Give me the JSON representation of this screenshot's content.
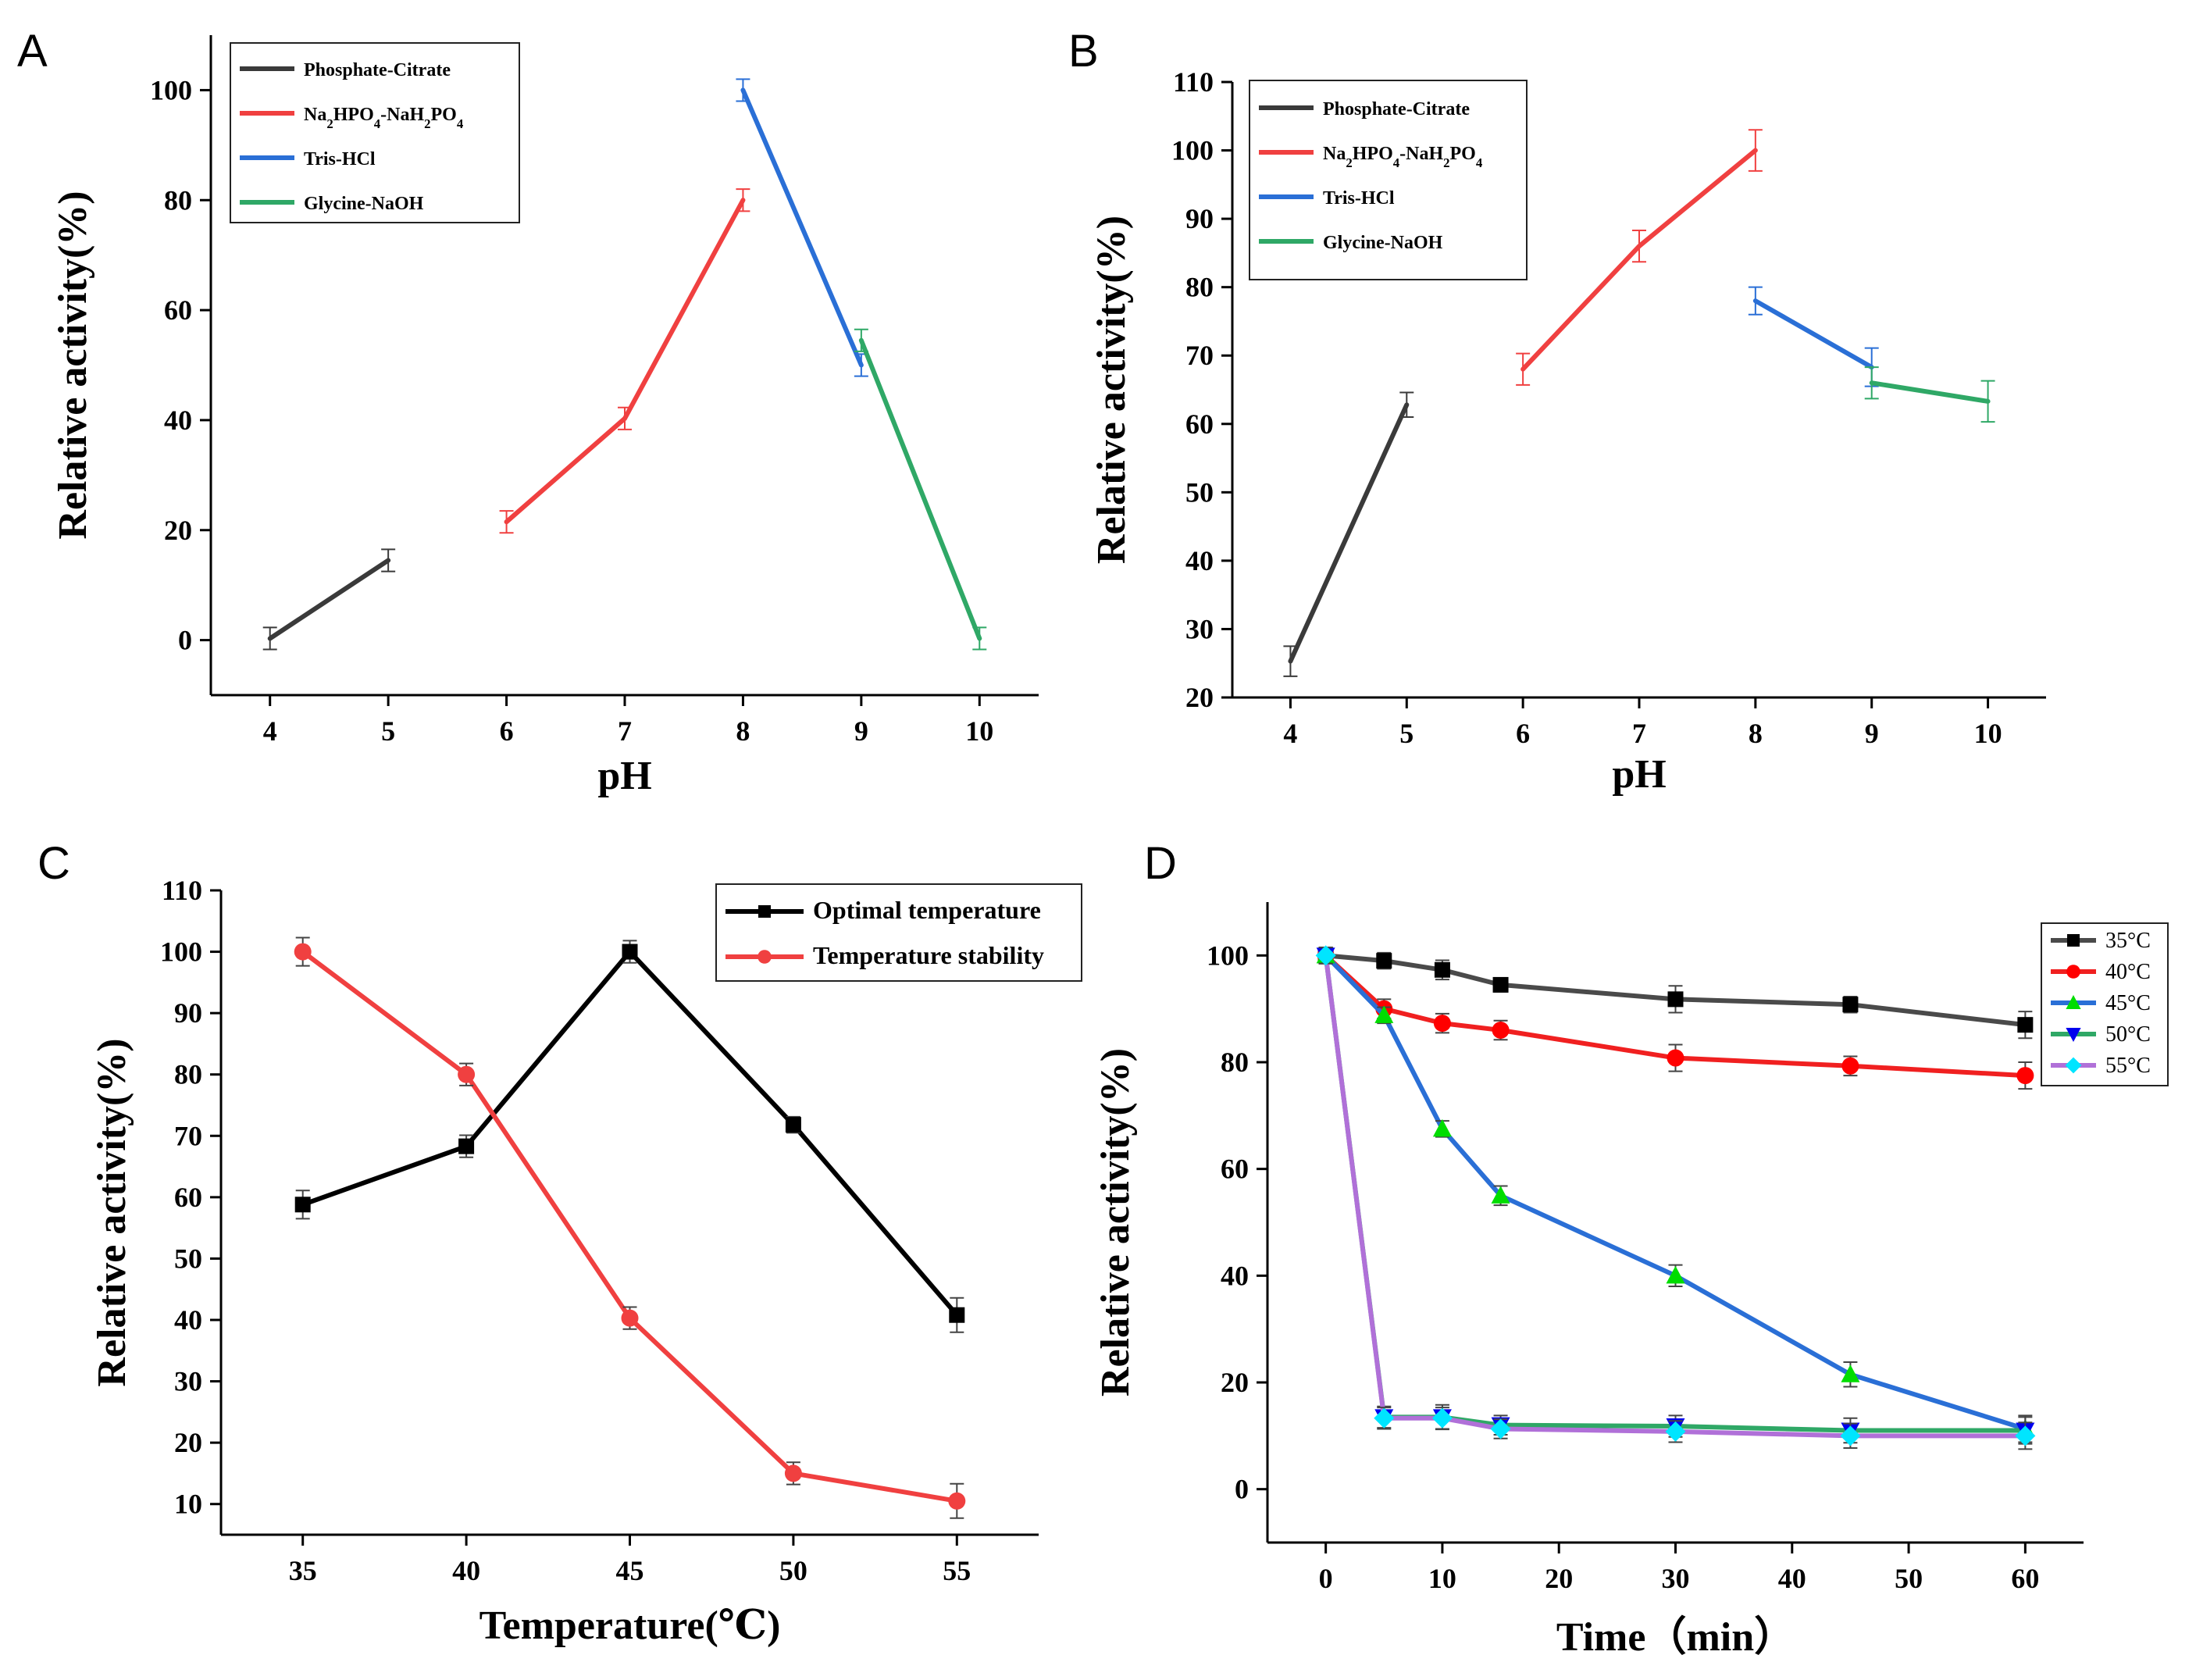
{
  "chart_data": [
    {
      "panel": "A",
      "type": "line",
      "xlabel": "pH",
      "ylabel": "Relative activity(%)",
      "xlim": [
        3.5,
        10.5
      ],
      "ylim": [
        -10,
        110
      ],
      "xticks": [
        4,
        5,
        6,
        7,
        8,
        9,
        10
      ],
      "yticks": [
        0,
        20,
        40,
        60,
        80,
        100
      ],
      "legend_position": "top-left",
      "series": [
        {
          "name": "Phosphate-Citrate",
          "label_html": "Phosphate-Citrate",
          "color": "#3a3a3a",
          "x": [
            4,
            5
          ],
          "y": [
            0.3,
            14.5
          ],
          "err": [
            2,
            2
          ]
        },
        {
          "name": "Na2HPO4-NaH2PO4",
          "label_parts": [
            "Na",
            "2",
            "HPO",
            "4",
            "-NaH",
            "2",
            "PO",
            "4"
          ],
          "color": "#f04040",
          "x": [
            6,
            7,
            8
          ],
          "y": [
            21.5,
            40.3,
            80
          ],
          "err": [
            2,
            2,
            2
          ]
        },
        {
          "name": "Tris-HCl",
          "label_parts": [
            "Tris-HCl"
          ],
          "color": "#2a6fd6",
          "x": [
            8,
            9
          ],
          "y": [
            100,
            50
          ],
          "err": [
            2,
            2
          ]
        },
        {
          "name": "Glycine-NaOH",
          "label_parts": [
            "Glycine-NaOH"
          ],
          "color": "#2fa866",
          "x": [
            9,
            10
          ],
          "y": [
            54.5,
            0.3
          ],
          "err": [
            2,
            2
          ]
        }
      ]
    },
    {
      "panel": "B",
      "type": "line",
      "xlabel": "pH",
      "ylabel": "Relative activity(%)",
      "xlim": [
        3.5,
        10.5
      ],
      "ylim": [
        20,
        110
      ],
      "xticks": [
        4,
        5,
        6,
        7,
        8,
        9,
        10
      ],
      "yticks": [
        20,
        30,
        40,
        50,
        60,
        70,
        80,
        90,
        100,
        110
      ],
      "legend_position": "top-left",
      "series": [
        {
          "name": "Phosphate-Citrate",
          "label_parts": [
            "Phosphate-Citrate"
          ],
          "color": "#3a3a3a",
          "x": [
            4,
            5
          ],
          "y": [
            25.3,
            62.8
          ],
          "err": [
            2.2,
            1.8
          ]
        },
        {
          "name": "Na2HPO4-NaH2PO4",
          "label_parts": [
            "Na",
            "2",
            "HPO",
            "4",
            "-NaH",
            "2",
            "PO",
            "4"
          ],
          "color": "#f04040",
          "x": [
            6,
            7,
            8
          ],
          "y": [
            68,
            86,
            100
          ],
          "err": [
            2.3,
            2.3,
            3
          ]
        },
        {
          "name": "Tris-HCl",
          "label_parts": [
            "Tris-HCl"
          ],
          "color": "#2a6fd6",
          "x": [
            8,
            9
          ],
          "y": [
            78,
            68.3
          ],
          "err": [
            2,
            2.8
          ]
        },
        {
          "name": "Glycine-NaOH",
          "label_parts": [
            "Glycine-NaOH"
          ],
          "color": "#2fa866",
          "x": [
            9,
            10
          ],
          "y": [
            66,
            63.3
          ],
          "err": [
            2.3,
            3
          ]
        }
      ]
    },
    {
      "panel": "C",
      "type": "line",
      "xlabel": "Temperature(℃)",
      "ylabel": "Relative activity(%)",
      "xlim": [
        32.5,
        57.5
      ],
      "ylim": [
        5,
        110
      ],
      "xticks": [
        35,
        40,
        45,
        50,
        55
      ],
      "yticks": [
        10,
        20,
        30,
        40,
        50,
        60,
        70,
        80,
        90,
        100,
        110
      ],
      "legend_position": "top-right",
      "series": [
        {
          "name": "Optimal temperature",
          "label_parts": [
            "Optimal temperature"
          ],
          "color": "#000000",
          "marker": "square",
          "x": [
            35,
            40,
            45,
            50,
            55
          ],
          "y": [
            58.8,
            68.3,
            100,
            71.8,
            40.8
          ],
          "err": [
            2.3,
            1.8,
            1.8,
            1.3,
            2.8
          ]
        },
        {
          "name": "Temperature stability",
          "label_parts": [
            "Temperature stability"
          ],
          "color": "#f04040",
          "marker": "circle",
          "x": [
            35,
            40,
            45,
            50,
            55
          ],
          "y": [
            100,
            80,
            40.3,
            15,
            10.5
          ],
          "err": [
            2.3,
            1.8,
            1.8,
            1.8,
            2.8
          ]
        }
      ]
    },
    {
      "panel": "D",
      "type": "line",
      "xlabel": "Time（min）",
      "ylabel": "Relative activity(%)",
      "xlim": [
        -5,
        65
      ],
      "ylim": [
        -10,
        110
      ],
      "xticks": [
        0,
        10,
        20,
        30,
        40,
        50,
        60
      ],
      "yticks": [
        0,
        20,
        40,
        60,
        80,
        100
      ],
      "legend_position": "top-right",
      "series": [
        {
          "name": "35°C",
          "label_parts": [
            "35°C"
          ],
          "line_color": "#4a4a4a",
          "marker_color": "#000000",
          "marker": "square",
          "x": [
            0,
            5,
            10,
            15,
            30,
            45,
            60
          ],
          "y": [
            100,
            99,
            97.3,
            94.5,
            91.8,
            90.8,
            87
          ],
          "err": [
            1.5,
            1.5,
            1.8,
            1.3,
            2.5,
            1.5,
            2.5
          ]
        },
        {
          "name": "40°C",
          "label_parts": [
            "40°C"
          ],
          "line_color": "#f02020",
          "marker_color": "#ff0000",
          "marker": "circle",
          "x": [
            0,
            5,
            10,
            15,
            30,
            45,
            60
          ],
          "y": [
            100,
            90,
            87.3,
            86,
            80.8,
            79.3,
            77.5
          ],
          "err": [
            1.5,
            1.8,
            1.8,
            1.8,
            2.5,
            1.8,
            2.5
          ]
        },
        {
          "name": "45°C",
          "label_parts": [
            "45°C"
          ],
          "line_color": "#2a6fd6",
          "marker_color": "#00dd00",
          "marker": "triangle-up",
          "x": [
            0,
            5,
            10,
            15,
            30,
            45,
            60
          ],
          "y": [
            100,
            88.8,
            67.5,
            55,
            40,
            21.5,
            11.3
          ],
          "err": [
            1.5,
            1.5,
            1.5,
            1.8,
            2,
            2.3,
            2.5
          ]
        },
        {
          "name": "50°C",
          "label_parts": [
            "50°C"
          ],
          "line_color": "#2fa866",
          "marker_color": "#0000ee",
          "marker": "triangle-down",
          "x": [
            0,
            5,
            10,
            15,
            30,
            45,
            60
          ],
          "y": [
            100,
            13.5,
            13.5,
            12,
            11.8,
            11,
            11
          ],
          "err": [
            1.5,
            2,
            2.3,
            1.8,
            2,
            2.3,
            2.5
          ]
        },
        {
          "name": "55°C",
          "label_parts": [
            "55°C"
          ],
          "line_color": "#b070d8",
          "marker_color": "#00e5ff",
          "marker": "diamond",
          "x": [
            0,
            5,
            10,
            15,
            30,
            45,
            60
          ],
          "y": [
            100,
            13.3,
            13.3,
            11.3,
            10.8,
            10,
            10
          ],
          "err": [
            1.5,
            2,
            2,
            1.8,
            2,
            2.3,
            2.5
          ]
        }
      ]
    }
  ],
  "panel_letters": [
    "A",
    "B",
    "C",
    "D"
  ]
}
